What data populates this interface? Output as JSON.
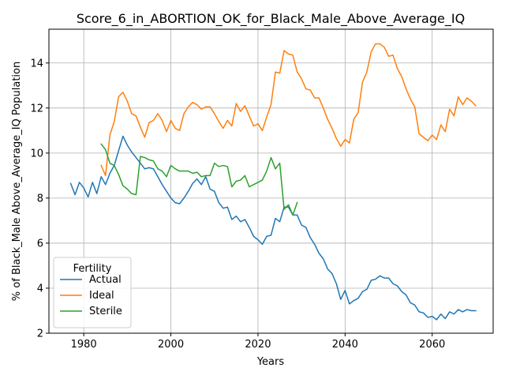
{
  "chart_data": {
    "type": "line",
    "title": "Score_6_in_ABORTION_OK_for_Black_Male_Above_Average_IQ",
    "xlabel": "Years",
    "ylabel": "% of Black_Male Above_Average_IQ Population",
    "xlim": [
      1972,
      2074
    ],
    "ylim": [
      2,
      15.5
    ],
    "xticks": [
      1980,
      2000,
      2020,
      2040,
      2060
    ],
    "yticks": [
      2,
      4,
      6,
      8,
      10,
      12,
      14
    ],
    "grid": true,
    "legend": {
      "title": "Fertility",
      "location": "lower-left"
    },
    "series": [
      {
        "name": "Actual",
        "color": "#1f77b4",
        "x": [
          1977,
          1978,
          1979,
          1980,
          1981,
          1982,
          1983,
          1984,
          1985,
          1986,
          1987,
          1988,
          1989,
          1990,
          1991,
          1992,
          1993,
          1994,
          1995,
          1996,
          1997,
          1998,
          1999,
          2000,
          2001,
          2002,
          2003,
          2004,
          2005,
          2006,
          2007,
          2008,
          2009,
          2010,
          2011,
          2012,
          2013,
          2014,
          2015,
          2016,
          2017,
          2018,
          2019,
          2020,
          2021,
          2022,
          2023,
          2024,
          2025,
          2026,
          2027,
          2028,
          2029,
          2030,
          2031,
          2032,
          2033,
          2034,
          2035,
          2036,
          2037,
          2038,
          2039,
          2040,
          2041,
          2042,
          2043,
          2044,
          2045,
          2046,
          2047,
          2048,
          2049,
          2050,
          2051,
          2052,
          2053,
          2054,
          2055,
          2056,
          2057,
          2058,
          2059,
          2060,
          2061,
          2062,
          2063,
          2064,
          2065,
          2066,
          2067,
          2068,
          2069,
          2070
        ],
        "y": [
          8.65,
          8.15,
          8.7,
          8.45,
          8.05,
          8.7,
          8.2,
          8.95,
          8.6,
          9.1,
          9.45,
          10.1,
          10.75,
          10.35,
          10.05,
          9.8,
          9.55,
          9.3,
          9.35,
          9.3,
          8.95,
          8.6,
          8.3,
          8.0,
          7.8,
          7.75,
          8.0,
          8.3,
          8.65,
          8.85,
          8.6,
          8.95,
          8.4,
          8.3,
          7.8,
          7.55,
          7.6,
          7.05,
          7.2,
          6.95,
          7.05,
          6.7,
          6.3,
          6.15,
          5.95,
          6.3,
          6.35,
          7.1,
          6.95,
          7.6,
          7.6,
          7.25,
          7.25,
          6.8,
          6.7,
          6.25,
          5.95,
          5.55,
          5.3,
          4.85,
          4.65,
          4.2,
          3.5,
          3.9,
          3.3,
          3.45,
          3.55,
          3.85,
          3.95,
          4.35,
          4.4,
          4.55,
          4.45,
          4.45,
          4.2,
          4.1,
          3.85,
          3.7,
          3.35,
          3.25,
          2.95,
          2.9,
          2.7,
          2.75,
          2.6,
          2.85,
          2.65,
          2.95,
          2.85,
          3.05,
          2.95,
          3.05,
          3.0,
          3.0
        ]
      },
      {
        "name": "Ideal",
        "color": "#ff7f0e",
        "x": [
          1984,
          1985,
          1986,
          1987,
          1988,
          1989,
          1990,
          1991,
          1992,
          1993,
          1994,
          1995,
          1996,
          1997,
          1998,
          1999,
          2000,
          2001,
          2002,
          2003,
          2004,
          2005,
          2006,
          2007,
          2008,
          2009,
          2010,
          2011,
          2012,
          2013,
          2014,
          2015,
          2016,
          2017,
          2018,
          2019,
          2020,
          2021,
          2022,
          2023,
          2024,
          2025,
          2026,
          2027,
          2028,
          2029,
          2030,
          2031,
          2032,
          2033,
          2034,
          2035,
          2036,
          2037,
          2038,
          2039,
          2040,
          2041,
          2042,
          2043,
          2044,
          2045,
          2046,
          2047,
          2048,
          2049,
          2050,
          2051,
          2052,
          2053,
          2054,
          2055,
          2056,
          2057,
          2058,
          2059,
          2060,
          2061,
          2062,
          2063,
          2064,
          2065,
          2066,
          2067,
          2068,
          2069,
          2070
        ],
        "y": [
          9.45,
          9.0,
          10.8,
          11.4,
          12.5,
          12.7,
          12.3,
          11.75,
          11.65,
          11.15,
          10.7,
          11.35,
          11.45,
          11.75,
          11.45,
          10.95,
          11.45,
          11.1,
          11.0,
          11.75,
          12.05,
          12.25,
          12.15,
          11.95,
          12.05,
          12.05,
          11.75,
          11.4,
          11.1,
          11.45,
          11.2,
          12.2,
          11.85,
          12.1,
          11.65,
          11.2,
          11.3,
          11.0,
          11.6,
          12.15,
          13.6,
          13.55,
          14.55,
          14.4,
          14.35,
          13.6,
          13.3,
          12.85,
          12.8,
          12.45,
          12.45,
          12.0,
          11.5,
          11.1,
          10.65,
          10.3,
          10.6,
          10.45,
          11.5,
          11.8,
          13.15,
          13.6,
          14.5,
          14.85,
          14.85,
          14.7,
          14.3,
          14.35,
          13.75,
          13.4,
          12.85,
          12.4,
          12.05,
          10.85,
          10.7,
          10.55,
          10.8,
          10.6,
          11.25,
          10.95,
          11.95,
          11.65,
          12.5,
          12.15,
          12.45,
          12.3,
          12.1
        ]
      },
      {
        "name": "Sterile",
        "color": "#2ca02c",
        "x": [
          1984,
          1985,
          1986,
          1987,
          1988,
          1989,
          1990,
          1991,
          1992,
          1993,
          1994,
          1995,
          1996,
          1997,
          1998,
          1999,
          2000,
          2001,
          2002,
          2003,
          2004,
          2005,
          2006,
          2007,
          2008,
          2009,
          2010,
          2011,
          2012,
          2013,
          2014,
          2015,
          2016,
          2017,
          2018,
          2019,
          2020,
          2021,
          2022,
          2023,
          2024,
          2025,
          2026,
          2027,
          2028,
          2029
        ],
        "y": [
          10.4,
          10.15,
          9.55,
          9.45,
          9.05,
          8.55,
          8.4,
          8.2,
          8.15,
          9.85,
          9.8,
          9.7,
          9.65,
          9.3,
          9.2,
          8.95,
          9.45,
          9.3,
          9.2,
          9.2,
          9.2,
          9.1,
          9.15,
          8.95,
          9.0,
          9.0,
          9.55,
          9.4,
          9.45,
          9.4,
          8.5,
          8.75,
          8.8,
          9.0,
          8.5,
          8.6,
          8.7,
          8.8,
          9.2,
          9.8,
          9.3,
          9.55,
          7.5,
          7.7,
          7.25,
          7.8
        ]
      }
    ]
  }
}
